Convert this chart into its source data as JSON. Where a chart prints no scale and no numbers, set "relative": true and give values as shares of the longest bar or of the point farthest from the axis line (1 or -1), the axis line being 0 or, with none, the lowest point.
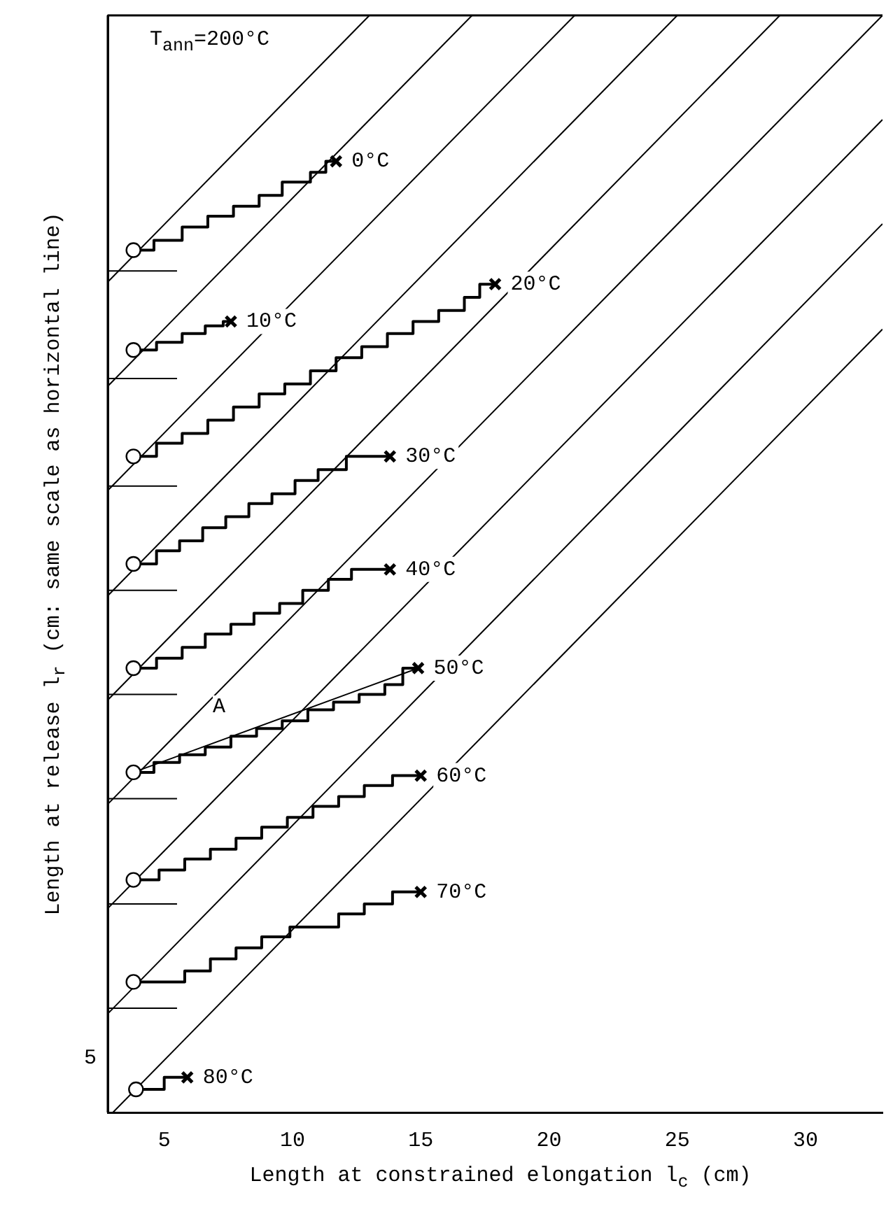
{
  "chart_data": {
    "type": "step",
    "relative": true,
    "xlabel": "Length at constrained elongation l$_{c}$ (cm)",
    "ylabel": "Length at release l$_{r}$ (cm: same scale as horizontal line)",
    "xlim": [
      2.8,
      33
    ],
    "xticks": [
      5,
      10,
      15,
      20,
      25,
      30
    ],
    "annotations": [
      "T$_{ann}$=200°C",
      "A",
      "5"
    ],
    "series": [
      {
        "name": "0°C",
        "color": "#000000",
        "x": [
          3.8,
          4.6,
          5.7,
          6.7,
          7.7,
          8.7,
          9.6,
          10.7,
          11.3,
          11.7
        ],
        "values": [
          0.786,
          0.795,
          0.807,
          0.817,
          0.826,
          0.836,
          0.848,
          0.857,
          0.867,
          0.867
        ]
      },
      {
        "name": "10°C",
        "color": "#000000",
        "x": [
          3.8,
          4.7,
          5.7,
          6.6,
          7.3,
          7.6
        ],
        "values": [
          0.695,
          0.702,
          0.71,
          0.717,
          0.721,
          0.721
        ]
      },
      {
        "name": "20°C",
        "color": "#000000",
        "x": [
          3.8,
          4.7,
          5.7,
          6.7,
          7.7,
          8.7,
          9.7,
          10.7,
          11.7,
          12.7,
          13.7,
          14.7,
          15.7,
          16.7,
          17.3,
          17.9
        ],
        "values": [
          0.598,
          0.61,
          0.619,
          0.631,
          0.643,
          0.655,
          0.664,
          0.676,
          0.688,
          0.698,
          0.71,
          0.721,
          0.731,
          0.743,
          0.755,
          0.755
        ]
      },
      {
        "name": "30°C",
        "color": "#000000",
        "x": [
          3.8,
          4.7,
          5.6,
          6.5,
          7.4,
          8.3,
          9.2,
          10.1,
          11.0,
          12.1,
          13.8
        ],
        "values": [
          0.5,
          0.512,
          0.521,
          0.533,
          0.543,
          0.555,
          0.564,
          0.576,
          0.586,
          0.598,
          0.598
        ]
      },
      {
        "name": "40°C",
        "color": "#000000",
        "x": [
          3.8,
          4.7,
          5.7,
          6.6,
          7.6,
          8.5,
          9.5,
          10.4,
          11.4,
          12.3,
          13.8
        ],
        "values": [
          0.405,
          0.414,
          0.424,
          0.436,
          0.445,
          0.455,
          0.464,
          0.476,
          0.486,
          0.495,
          0.495
        ]
      },
      {
        "name": "50°C",
        "color": "#000000",
        "x": [
          3.8,
          4.6,
          5.6,
          6.6,
          7.6,
          8.6,
          9.6,
          10.6,
          11.6,
          12.6,
          13.6,
          14.3,
          14.9
        ],
        "values": [
          0.31,
          0.319,
          0.326,
          0.333,
          0.343,
          0.35,
          0.357,
          0.367,
          0.374,
          0.381,
          0.39,
          0.405,
          0.405
        ]
      },
      {
        "name": "60°C",
        "color": "#000000",
        "x": [
          3.8,
          4.8,
          5.8,
          6.8,
          7.8,
          8.8,
          9.8,
          10.8,
          11.8,
          12.8,
          13.9,
          15.0
        ],
        "values": [
          0.212,
          0.221,
          0.231,
          0.24,
          0.25,
          0.26,
          0.269,
          0.279,
          0.288,
          0.298,
          0.307,
          0.307
        ]
      },
      {
        "name": "70°C",
        "color": "#000000",
        "x": [
          3.8,
          5.8,
          6.8,
          7.8,
          8.8,
          9.9,
          11.8,
          12.8,
          13.9,
          15.0
        ],
        "values": [
          0.119,
          0.129,
          0.14,
          0.15,
          0.16,
          0.169,
          0.181,
          0.19,
          0.201,
          0.201
        ]
      },
      {
        "name": "80°C",
        "color": "#000000",
        "x": [
          3.9,
          5.0,
          5.9
        ],
        "values": [
          0.021,
          0.032,
          0.032
        ]
      },
      {
        "type": "line",
        "color": "#000000",
        "x": [
          3.8,
          14.9
        ],
        "values": [
          0.31,
          0.405
        ]
      },
      {
        "type": "scatter",
        "marker": "circle",
        "color": "#000000",
        "x": [
          3.8,
          3.8,
          3.8,
          3.8,
          3.8,
          3.8,
          3.8,
          3.8,
          3.9
        ],
        "values": [
          0.786,
          0.695,
          0.598,
          0.5,
          0.405,
          0.31,
          0.212,
          0.119,
          0.021
        ]
      },
      {
        "type": "scatter",
        "marker": "cross",
        "color": "#000000",
        "x": [
          11.7,
          7.6,
          17.9,
          13.8,
          13.8,
          14.9,
          15.0,
          15.0,
          5.9
        ],
        "values": [
          0.867,
          0.721,
          0.755,
          0.598,
          0.495,
          0.405,
          0.307,
          0.201,
          0.032
        ]
      },
      {
        "type": "line",
        "color": "#000000",
        "x": [
          3,
          33
        ],
        "values": [
          0,
          0.714
        ]
      },
      {
        "type": "line",
        "color": "#000000",
        "x": [
          2.8,
          33
        ],
        "values": [
          0.09,
          0.81
        ]
      },
      {
        "type": "line",
        "color": "#000000",
        "x": [
          2.8,
          33
        ],
        "values": [
          0.186,
          0.905
        ]
      },
      {
        "type": "line",
        "color": "#000000",
        "x": [
          2.8,
          33
        ],
        "values": [
          0.281,
          1
        ]
      },
      {
        "type": "line",
        "color": "#000000",
        "x": [
          2.8,
          29
        ],
        "values": [
          0.376,
          1
        ]
      },
      {
        "type": "line",
        "color": "#000000",
        "x": [
          2.8,
          25
        ],
        "values": [
          0.471,
          1
        ]
      },
      {
        "type": "line",
        "color": "#000000",
        "x": [
          2.8,
          21
        ],
        "values": [
          0.567,
          1
        ]
      },
      {
        "type": "line",
        "color": "#000000",
        "x": [
          2.8,
          17
        ],
        "values": [
          0.662,
          1
        ]
      },
      {
        "type": "line",
        "color": "#000000",
        "x": [
          2.8,
          13
        ],
        "values": [
          0.757,
          1
        ]
      },
      {
        "type": "line",
        "color": "#000000",
        "x": [
          2.8,
          5.5
        ],
        "values": [
          0.095,
          0.095
        ]
      },
      {
        "type": "line",
        "color": "#000000",
        "x": [
          2.8,
          5.5
        ],
        "values": [
          0.19,
          0.19
        ]
      },
      {
        "type": "line",
        "color": "#000000",
        "x": [
          2.8,
          5.5
        ],
        "values": [
          0.286,
          0.286
        ]
      },
      {
        "type": "line",
        "color": "#000000",
        "x": [
          2.8,
          5.5
        ],
        "values": [
          0.381,
          0.381
        ]
      },
      {
        "type": "line",
        "color": "#000000",
        "x": [
          2.8,
          5.5
        ],
        "values": [
          0.476,
          0.476
        ]
      },
      {
        "type": "line",
        "color": "#000000",
        "x": [
          2.8,
          5.5
        ],
        "values": [
          0.571,
          0.571
        ]
      },
      {
        "type": "line",
        "color": "#000000",
        "x": [
          2.8,
          5.5
        ],
        "values": [
          0.669,
          0.669
        ]
      },
      {
        "type": "line",
        "color": "#000000",
        "x": [
          2.8,
          5.5
        ],
        "values": [
          0.767,
          0.767
        ]
      }
    ]
  }
}
